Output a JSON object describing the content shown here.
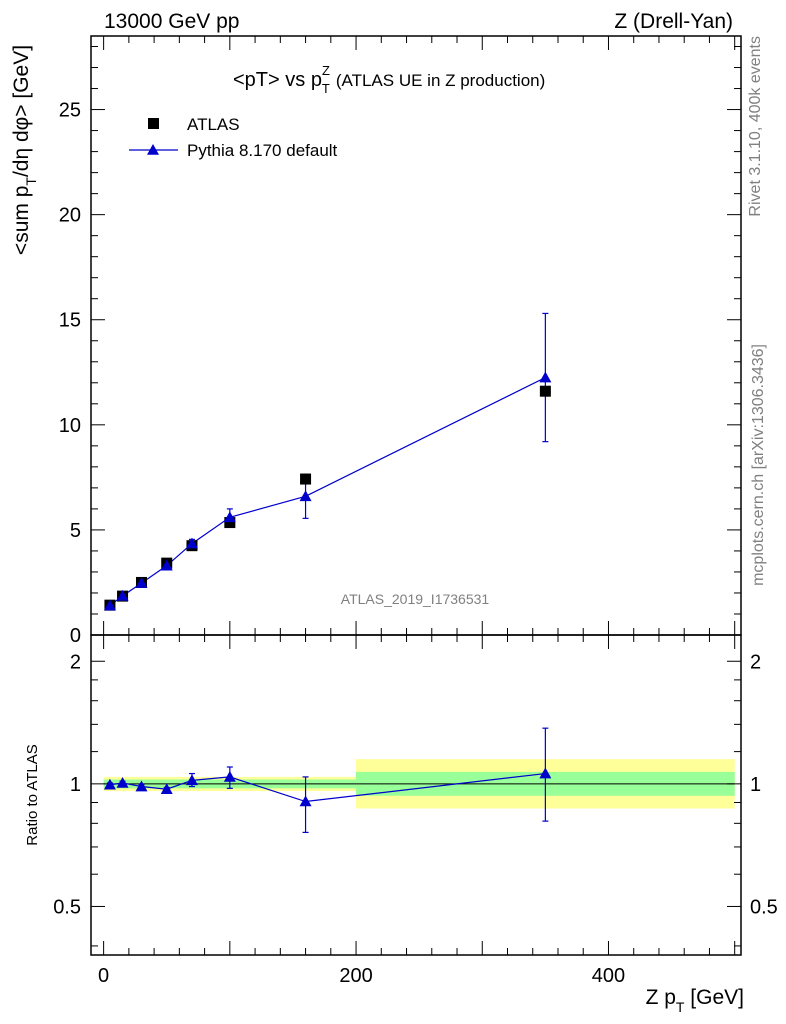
{
  "header": {
    "left": "13000 GeV pp",
    "right": "Z (Drell-Yan)"
  },
  "side_labels": {
    "rivet": "Rivet 3.1.10,  400k events",
    "mcplots": "mcplots.cern.ch [arXiv:1306.3436]"
  },
  "analysis_id": "ATLAS_2019_I1736531",
  "chart_data": [
    {
      "type": "scatter",
      "panel": "main",
      "title": {
        "main": "<pT> vs p",
        "sup": "Z",
        "sub": "T",
        "suffix": "(ATLAS UE in Z production)"
      },
      "ylabel": {
        "pre": "<sum p",
        "sub": "T",
        "post": "/dη dφ> [GeV]"
      },
      "xlim": [
        -10,
        505
      ],
      "ylim": [
        0,
        28.5
      ],
      "yticks": [
        0,
        5,
        10,
        15,
        20,
        25
      ],
      "yticklabels": [
        "0",
        "5",
        "10",
        "15",
        "20",
        "25"
      ],
      "legend_position": "top-left",
      "series": [
        {
          "name": "ATLAS",
          "marker": "square",
          "color": "#000000",
          "x": [
            5,
            15,
            30,
            50,
            70,
            100,
            160,
            350
          ],
          "y": [
            1.42,
            1.85,
            2.5,
            3.42,
            4.25,
            5.35,
            7.42,
            11.6
          ]
        },
        {
          "name": "Pythia 8.170 default",
          "marker": "triangle",
          "color": "#0000cc",
          "x": [
            5,
            15,
            30,
            50,
            70,
            100,
            160,
            350
          ],
          "y": [
            1.4,
            1.86,
            2.47,
            3.3,
            4.35,
            5.6,
            6.6,
            12.25
          ],
          "yerr": [
            0.05,
            0.05,
            0.06,
            0.15,
            0.2,
            0.4,
            1.05,
            3.05
          ]
        }
      ]
    },
    {
      "type": "scatter",
      "panel": "ratio",
      "ylabel": "Ratio to ATLAS",
      "xlabel": {
        "pre": "Z p",
        "sub": "T",
        "post": " [GeV]"
      },
      "xlim": [
        -10,
        505
      ],
      "xticks": [
        0,
        200,
        400
      ],
      "xticklabels": [
        "0",
        "200",
        "400"
      ],
      "ylim": [
        0.38,
        2.32
      ],
      "log_y": true,
      "yticks": [
        0.5,
        1,
        2
      ],
      "yticklabels": [
        "0.5",
        "1",
        "2"
      ],
      "bands": [
        {
          "x": [
            0,
            200
          ],
          "yellow": [
            0.96,
            1.04
          ],
          "green": [
            0.975,
            1.025
          ]
        },
        {
          "x": [
            200,
            500
          ],
          "yellow": [
            0.87,
            1.15
          ],
          "green": [
            0.935,
            1.07
          ]
        }
      ],
      "series": [
        {
          "name": "Pythia 8.170 default",
          "marker": "triangle",
          "color": "#0000cc",
          "x": [
            5,
            15,
            30,
            50,
            70,
            100,
            160,
            350
          ],
          "y": [
            0.995,
            1.005,
            0.985,
            0.97,
            1.02,
            1.04,
            0.905,
            1.06
          ],
          "ylo": [
            0.985,
            0.995,
            0.975,
            0.96,
            0.985,
            0.975,
            0.76,
            0.81
          ],
          "yhi": [
            1.005,
            1.015,
            0.995,
            0.98,
            1.06,
            1.1,
            1.04,
            1.37
          ]
        }
      ]
    }
  ]
}
